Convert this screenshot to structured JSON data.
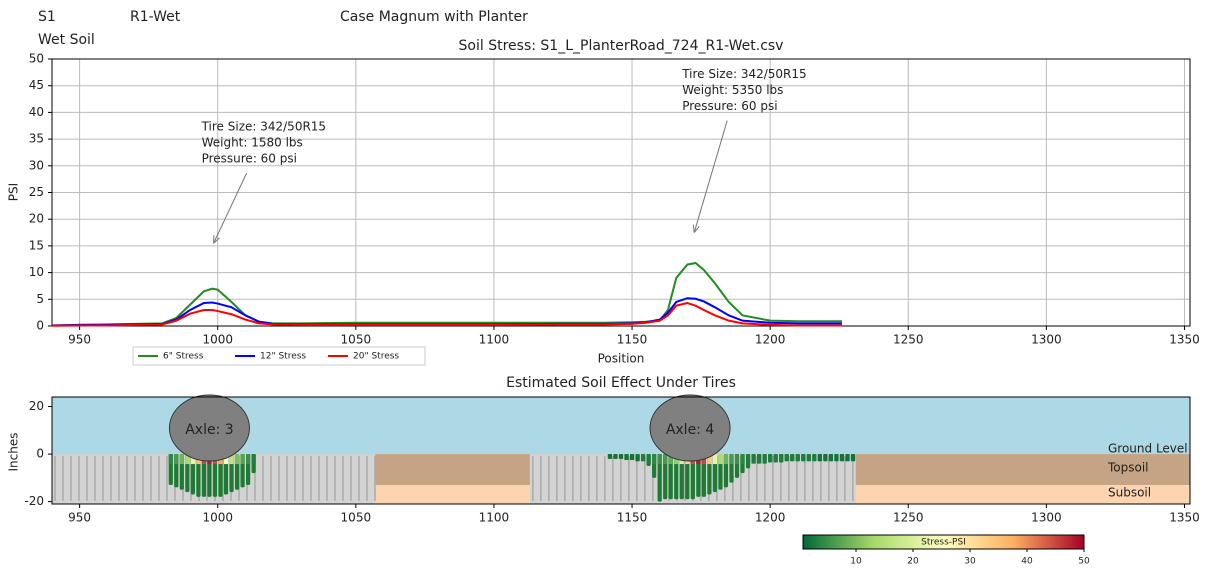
{
  "header": {
    "case": "S1",
    "run": "R1-Wet",
    "machine": "Case Magnum with Planter",
    "soil": "Wet Soil"
  },
  "chart_data": [
    {
      "type": "line",
      "title": "Soil Stress: S1_L_PlanterRoad_724_R1-Wet.csv",
      "x_label": "Position",
      "y_label": "PSI",
      "x": [
        940,
        950,
        960,
        970,
        980,
        985,
        990,
        995,
        998,
        1000,
        1005,
        1010,
        1015,
        1020,
        1030,
        1050,
        1075,
        1100,
        1125,
        1140,
        1150,
        1155,
        1160,
        1163,
        1166,
        1170,
        1173,
        1176,
        1180,
        1185,
        1190,
        1200,
        1210,
        1226
      ],
      "series": [
        {
          "name": "6\" Stress",
          "color": "#228b22",
          "values": [
            0.1,
            0.2,
            0.3,
            0.4,
            0.5,
            1.5,
            4,
            6.5,
            7,
            6.8,
            4.5,
            2,
            0.8,
            0.5,
            0.5,
            0.6,
            0.6,
            0.6,
            0.6,
            0.6,
            0.7,
            0.8,
            1,
            3,
            9,
            11.5,
            11.8,
            10.5,
            8,
            4.5,
            2,
            1,
            0.9,
            0.9
          ]
        },
        {
          "name": "12\" Stress",
          "color": "#0000ff",
          "values": [
            0.1,
            0.2,
            0.2,
            0.3,
            0.4,
            1.2,
            3,
            4.3,
            4.4,
            4.2,
            3.5,
            2,
            0.8,
            0.4,
            0.3,
            0.3,
            0.3,
            0.3,
            0.4,
            0.4,
            0.5,
            0.7,
            1.2,
            2.5,
            4.5,
            5.2,
            5.1,
            4.6,
            3.5,
            2,
            1,
            0.6,
            0.5,
            0.5
          ]
        },
        {
          "name": "20\" Stress",
          "color": "#ff0000",
          "values": [
            0.05,
            0.1,
            0.1,
            0.2,
            0.3,
            1,
            2.3,
            3,
            3,
            2.8,
            2.2,
            1.2,
            0.5,
            0.3,
            0.2,
            0.2,
            0.2,
            0.2,
            0.3,
            0.3,
            0.4,
            0.6,
            1,
            2,
            3.8,
            4.3,
            3.8,
            3,
            2,
            1,
            0.5,
            0.2,
            0.1,
            0.1
          ]
        }
      ],
      "annotations": [
        {
          "text": [
            "Tire Size: 342/50R15",
            "Weight: 1580 lbs",
            "Pressure: 60 psi"
          ],
          "xy": [
            998.5,
            15.5
          ]
        },
        {
          "text": [
            "Tire Size: 342/50R15",
            "Weight: 5350 lbs",
            "Pressure: 60 psi"
          ],
          "xy": [
            1172.5,
            17.5
          ]
        }
      ],
      "xlim": [
        940,
        1352
      ],
      "ylim": [
        0,
        50
      ],
      "xticks": [
        950,
        1000,
        1050,
        1100,
        1150,
        1200,
        1250,
        1300,
        1350
      ],
      "yticks": [
        0,
        5,
        10,
        15,
        20,
        25,
        30,
        35,
        40,
        45,
        50
      ],
      "grid": true
    },
    {
      "type": "profile",
      "title": "Estimated Soil Effect Under Tires",
      "y_label": "Inches",
      "xlim": [
        940,
        1352
      ],
      "ylim": [
        -21,
        24
      ],
      "xticks": [
        950,
        1000,
        1050,
        1100,
        1150,
        1200,
        1250,
        1300,
        1350
      ],
      "yticks": [
        -20,
        0,
        20
      ],
      "ground_level": 0,
      "topsoil_bottom": -13,
      "layer_labels": [
        "Ground Level",
        "Topsoil",
        "Subsoil"
      ],
      "gray_zones": [
        [
          940,
          1057
        ],
        [
          1113,
          1231
        ]
      ],
      "axles": [
        {
          "label": "Axle: 3",
          "x": 997
        },
        {
          "label": "Axle: 4",
          "x": 1171
        }
      ],
      "stress_columns": [
        {
          "x": [
            983,
            985,
            987,
            989,
            991,
            993,
            995,
            997,
            999,
            1001,
            1003,
            1005,
            1007,
            1009,
            1011,
            1013
          ],
          "depth": [
            -13,
            -14,
            -15,
            -16,
            -17,
            -18,
            -18,
            -18,
            -18,
            -18,
            -17,
            -16,
            -15,
            -14,
            -13,
            -8
          ],
          "psi": [
            4,
            6,
            9,
            14,
            22,
            35,
            45,
            48,
            45,
            38,
            26,
            16,
            10,
            7,
            5,
            3
          ]
        },
        {
          "x": [
            1142,
            1144,
            1146,
            1148,
            1150,
            1152,
            1154,
            1156,
            1158,
            1160,
            1162,
            1164,
            1166,
            1168,
            1170,
            1172,
            1174,
            1176,
            1178,
            1180,
            1182,
            1184,
            1186,
            1188,
            1190,
            1192,
            1194,
            1196,
            1198,
            1200,
            1202,
            1204,
            1206,
            1208,
            1210,
            1212,
            1214,
            1216,
            1218,
            1220,
            1222,
            1224,
            1226,
            1228,
            1230
          ],
          "depth": [
            -2,
            -2,
            -2,
            -2.5,
            -2.5,
            -3,
            -3,
            -5,
            -10,
            -20,
            -19,
            -19,
            -19,
            -19,
            -19,
            -19,
            -18,
            -18,
            -17,
            -16,
            -15,
            -14,
            -12,
            -10,
            -8,
            -6,
            -4,
            -4,
            -4,
            -3.5,
            -3.5,
            -3.5,
            -3,
            -3,
            -3,
            -3,
            -3,
            -3,
            -3,
            -3,
            -3,
            -3,
            -3,
            -3,
            -3
          ],
          "psi": [
            2,
            2,
            2,
            2,
            2,
            2,
            3,
            3,
            4,
            5,
            6,
            8,
            12,
            20,
            32,
            45,
            48,
            45,
            34,
            22,
            14,
            9,
            6,
            5,
            4,
            3,
            3,
            3,
            3,
            3,
            3,
            3,
            3,
            3,
            3,
            3,
            3,
            3,
            2,
            2,
            2,
            2,
            2,
            2,
            2
          ]
        }
      ],
      "colorbar": {
        "label": "Stress-PSI",
        "lim": [
          0.7,
          50
        ],
        "ticks": [
          10,
          20,
          30,
          40,
          50
        ]
      }
    }
  ]
}
